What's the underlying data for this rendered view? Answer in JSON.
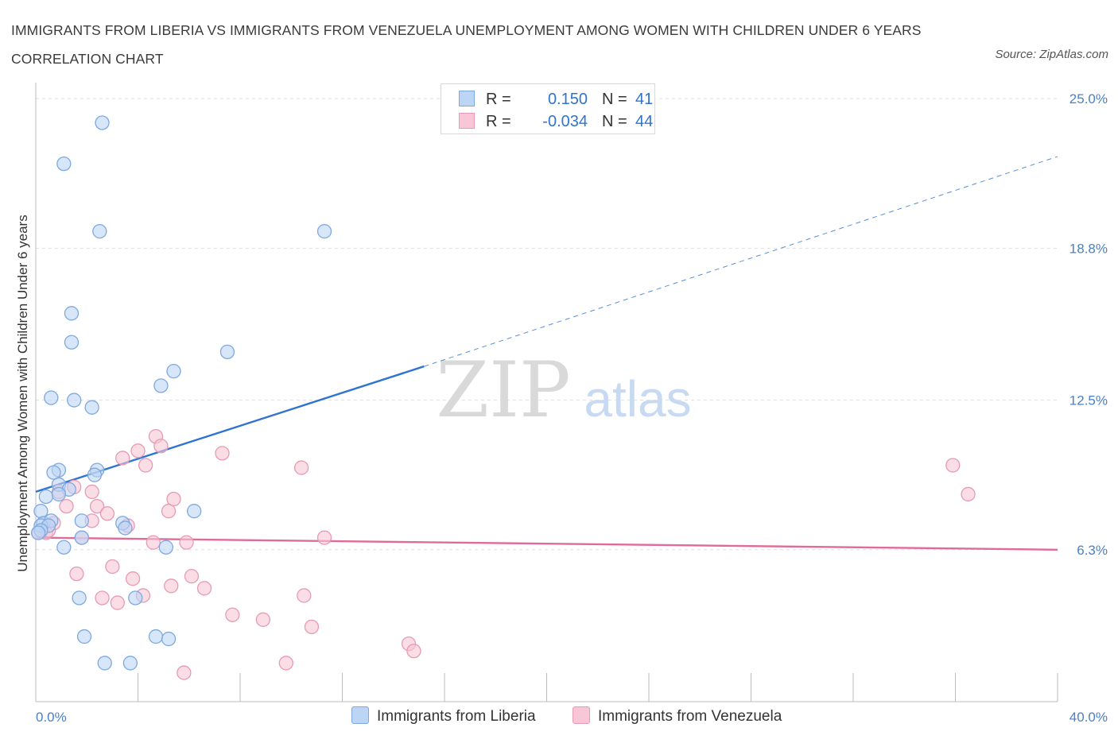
{
  "title": "IMMIGRANTS FROM LIBERIA VS IMMIGRANTS FROM VENEZUELA UNEMPLOYMENT AMONG WOMEN WITH CHILDREN UNDER 6 YEARS CORRELATION CHART",
  "source": "Source: ZipAtlas.com",
  "watermark": {
    "zip": "ZIP",
    "atlas": "atlas"
  },
  "colors": {
    "liberia_fill": "#bcd5f5",
    "liberia_stroke": "#7ea9e0",
    "liberia_line": "#2f74d0",
    "venezuela_fill": "#f8c6d6",
    "venezuela_stroke": "#e79ab5",
    "venezuela_line": "#e06a98",
    "tick_label": "#4a80c8",
    "grid": "#dddddd"
  },
  "legend": {
    "liberia": {
      "r_label": "R =",
      "r_value": "0.150",
      "n_label": "N =",
      "n_value": "41"
    },
    "venezuela": {
      "r_label": "R =",
      "r_value": "-0.034",
      "n_label": "N =",
      "n_value": "44"
    }
  },
  "chart_data": {
    "type": "scatter",
    "title": "IMMIGRANTS FROM LIBERIA VS IMMIGRANTS FROM VENEZUELA UNEMPLOYMENT AMONG WOMEN WITH CHILDREN UNDER 6 YEARS CORRELATION CHART",
    "xlabel": "",
    "ylabel": "Unemployment Among Women with Children Under 6 years",
    "xlim": [
      0,
      40
    ],
    "ylim": [
      0,
      25.4
    ],
    "x_tick_labels": [
      {
        "value": 0,
        "label": "0.0%"
      },
      {
        "value": 40,
        "label": "40.0%"
      }
    ],
    "y_tick_labels": [
      {
        "value": 25.0,
        "label": "25.0%"
      },
      {
        "value": 18.8,
        "label": "18.8%"
      },
      {
        "value": 12.5,
        "label": "12.5%"
      },
      {
        "value": 6.3,
        "label": "6.3%"
      }
    ],
    "x_minor_ticks": [
      0,
      4,
      8,
      12,
      16,
      20,
      24,
      28,
      32,
      36,
      40
    ],
    "series": [
      {
        "name": "Immigrants from Liberia",
        "points": [
          [
            2.6,
            24.0
          ],
          [
            1.1,
            22.3
          ],
          [
            2.5,
            19.5
          ],
          [
            11.3,
            19.5
          ],
          [
            1.4,
            16.1
          ],
          [
            1.4,
            14.9
          ],
          [
            7.5,
            14.5
          ],
          [
            5.4,
            13.7
          ],
          [
            4.9,
            13.1
          ],
          [
            0.6,
            12.6
          ],
          [
            1.5,
            12.5
          ],
          [
            2.2,
            12.2
          ],
          [
            0.9,
            9.6
          ],
          [
            0.7,
            9.5
          ],
          [
            2.4,
            9.6
          ],
          [
            2.3,
            9.4
          ],
          [
            0.9,
            9.0
          ],
          [
            1.3,
            8.8
          ],
          [
            0.9,
            8.6
          ],
          [
            0.4,
            8.5
          ],
          [
            6.2,
            7.9
          ],
          [
            0.2,
            7.9
          ],
          [
            0.3,
            7.4
          ],
          [
            0.6,
            7.5
          ],
          [
            1.8,
            7.5
          ],
          [
            3.4,
            7.4
          ],
          [
            3.5,
            7.2
          ],
          [
            0.2,
            7.3
          ],
          [
            0.5,
            7.3
          ],
          [
            0.2,
            7.1
          ],
          [
            1.8,
            6.8
          ],
          [
            1.1,
            6.4
          ],
          [
            5.1,
            6.4
          ],
          [
            1.7,
            4.3
          ],
          [
            3.9,
            4.3
          ],
          [
            1.9,
            2.7
          ],
          [
            4.7,
            2.7
          ],
          [
            5.2,
            2.6
          ],
          [
            2.7,
            1.6
          ],
          [
            3.7,
            1.6
          ],
          [
            0.1,
            7.0
          ]
        ],
        "trend": {
          "x": [
            0,
            15.2
          ],
          "y": [
            8.7,
            13.9
          ],
          "extend_to": [
            40,
            22.6
          ]
        }
      },
      {
        "name": "Immigrants from Venezuela",
        "points": [
          [
            4.7,
            11.0
          ],
          [
            4.9,
            10.6
          ],
          [
            4.0,
            10.4
          ],
          [
            7.3,
            10.3
          ],
          [
            3.4,
            10.1
          ],
          [
            4.3,
            9.8
          ],
          [
            10.4,
            9.7
          ],
          [
            35.9,
            9.8
          ],
          [
            1.5,
            8.9
          ],
          [
            2.2,
            8.7
          ],
          [
            36.5,
            8.6
          ],
          [
            5.4,
            8.4
          ],
          [
            0.9,
            8.7
          ],
          [
            1.2,
            8.1
          ],
          [
            2.4,
            8.1
          ],
          [
            2.8,
            7.8
          ],
          [
            5.2,
            7.9
          ],
          [
            2.2,
            7.5
          ],
          [
            0.7,
            7.4
          ],
          [
            3.6,
            7.3
          ],
          [
            0.4,
            7.0
          ],
          [
            0.1,
            7.0
          ],
          [
            0.5,
            7.1
          ],
          [
            11.3,
            6.8
          ],
          [
            4.6,
            6.6
          ],
          [
            1.8,
            6.8
          ],
          [
            5.9,
            6.6
          ],
          [
            1.6,
            5.3
          ],
          [
            3.0,
            5.6
          ],
          [
            3.8,
            5.1
          ],
          [
            6.1,
            5.2
          ],
          [
            6.6,
            4.7
          ],
          [
            5.3,
            4.8
          ],
          [
            2.6,
            4.3
          ],
          [
            3.2,
            4.1
          ],
          [
            4.2,
            4.4
          ],
          [
            10.5,
            4.4
          ],
          [
            7.7,
            3.6
          ],
          [
            8.9,
            3.4
          ],
          [
            10.8,
            3.1
          ],
          [
            14.6,
            2.4
          ],
          [
            14.8,
            2.1
          ],
          [
            9.8,
            1.6
          ],
          [
            5.8,
            1.2
          ]
        ],
        "trend": {
          "x": [
            0,
            40
          ],
          "y": [
            6.8,
            6.3
          ]
        }
      }
    ],
    "legend": [
      "Immigrants from Liberia",
      "Immigrants from Venezuela"
    ],
    "legend_position": "top-center"
  }
}
